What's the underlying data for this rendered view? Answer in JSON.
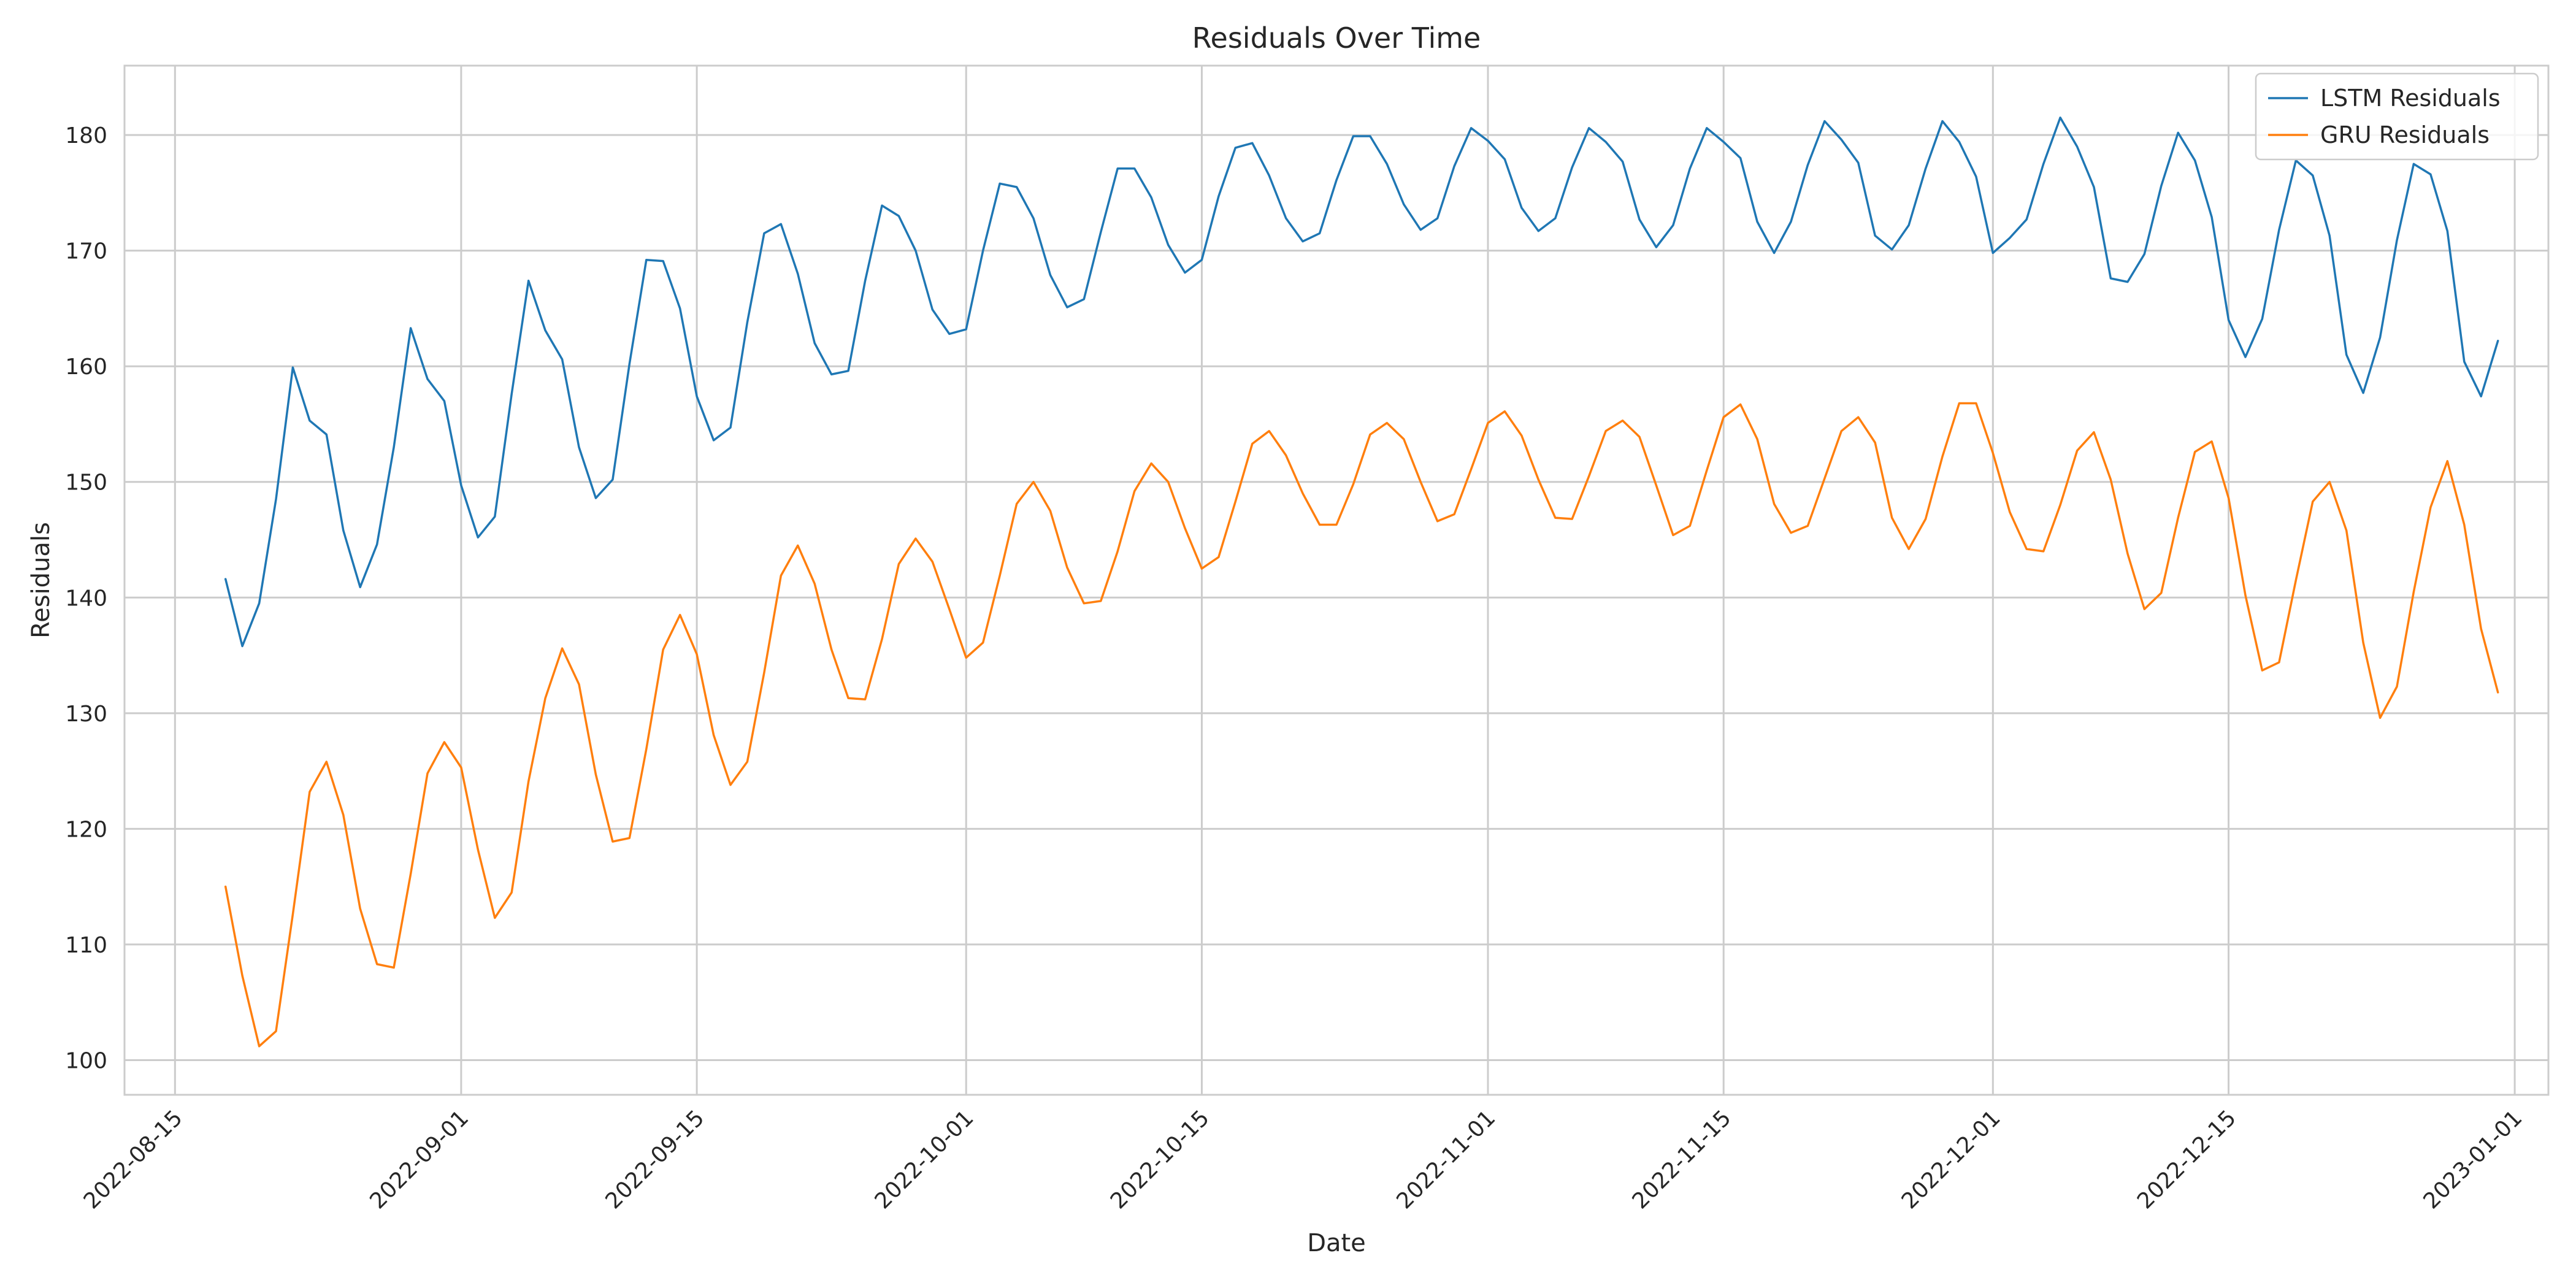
{
  "chart_data": {
    "type": "line",
    "title": "Residuals Over Time",
    "xlabel": "Date",
    "ylabel": "Residuals",
    "grid": true,
    "legend_position": "top-right",
    "x_start": "2022-08-18",
    "x_step_days": 1,
    "xlim": [
      "2022-08-12",
      "2023-01-03"
    ],
    "ylim": [
      97,
      186
    ],
    "xticks": [
      "2022-08-15",
      "2022-09-01",
      "2022-09-15",
      "2022-10-01",
      "2022-10-15",
      "2022-11-01",
      "2022-11-15",
      "2022-12-01",
      "2022-12-15",
      "2023-01-01"
    ],
    "yticks": [
      100,
      110,
      120,
      130,
      140,
      150,
      160,
      170,
      180
    ],
    "series": [
      {
        "name": "LSTM Residuals",
        "color": "#1f77b4",
        "values": [
          141.6,
          135.8,
          139.5,
          148.5,
          159.9,
          155.3,
          154.1,
          145.8,
          140.9,
          144.6,
          153.0,
          163.3,
          158.9,
          157.0,
          149.7,
          145.2,
          147.0,
          157.6,
          167.4,
          163.1,
          160.6,
          153.0,
          148.6,
          150.2,
          160.2,
          169.2,
          169.1,
          165.0,
          157.4,
          153.6,
          154.7,
          163.8,
          171.5,
          172.3,
          168.0,
          162.0,
          159.3,
          159.6,
          167.4,
          173.9,
          173.0,
          170.0,
          164.9,
          162.8,
          163.2,
          170.0,
          175.8,
          175.5,
          172.8,
          167.9,
          165.1,
          165.8,
          171.6,
          177.1,
          177.1,
          174.6,
          170.5,
          168.1,
          169.2,
          174.7,
          178.9,
          179.3,
          176.5,
          172.8,
          170.8,
          171.5,
          176.1,
          179.9,
          179.9,
          177.5,
          174.0,
          171.8,
          172.8,
          177.3,
          180.6,
          179.5,
          177.9,
          173.7,
          171.7,
          172.8,
          177.2,
          180.6,
          179.4,
          177.7,
          172.7,
          170.3,
          172.2,
          177.1,
          180.6,
          179.4,
          178.0,
          172.5,
          169.8,
          172.5,
          177.4,
          181.2,
          179.6,
          177.6,
          171.3,
          170.1,
          172.2,
          177.1,
          181.2,
          179.4,
          176.4,
          169.8,
          171.1,
          172.7,
          177.5,
          181.5,
          179.0,
          175.5,
          167.6,
          167.3,
          169.7,
          175.6,
          180.2,
          177.8,
          172.9,
          164.0,
          160.8,
          164.1,
          171.8,
          177.8,
          176.5,
          171.3,
          161.0,
          157.7,
          162.5,
          170.9,
          177.5,
          176.6,
          171.7,
          160.4,
          157.4,
          162.2
        ]
      },
      {
        "name": "GRU Residuals",
        "color": "#ff7f0e",
        "values": [
          115.0,
          107.3,
          101.2,
          102.5,
          112.6,
          123.2,
          125.8,
          121.2,
          113.1,
          108.3,
          108.0,
          116.1,
          124.8,
          127.5,
          125.3,
          118.2,
          112.3,
          114.5,
          124.1,
          131.3,
          135.6,
          132.5,
          124.7,
          118.9,
          119.2,
          126.9,
          135.5,
          138.5,
          135.1,
          128.1,
          123.8,
          125.8,
          133.5,
          141.9,
          144.5,
          141.2,
          135.5,
          131.3,
          131.2,
          136.4,
          142.9,
          145.1,
          143.1,
          139.0,
          134.8,
          136.1,
          141.9,
          148.1,
          150.0,
          147.5,
          142.6,
          139.5,
          139.7,
          144.0,
          149.2,
          151.6,
          150.0,
          146.0,
          142.5,
          143.5,
          148.3,
          153.3,
          154.4,
          152.3,
          149.0,
          146.3,
          146.3,
          149.8,
          154.1,
          155.1,
          153.7,
          150.0,
          146.6,
          147.2,
          151.1,
          155.1,
          156.1,
          154.0,
          150.2,
          146.9,
          146.8,
          150.5,
          154.4,
          155.3,
          153.9,
          149.7,
          145.4,
          146.2,
          151.0,
          155.6,
          156.7,
          153.7,
          148.1,
          145.6,
          146.2,
          150.3,
          154.4,
          155.6,
          153.4,
          146.9,
          144.2,
          146.8,
          152.2,
          156.8,
          156.8,
          152.5,
          147.4,
          144.2,
          144.0,
          148.0,
          152.7,
          154.3,
          150.2,
          143.8,
          139.0,
          140.4,
          146.9,
          152.6,
          153.5,
          148.6,
          140.2,
          133.7,
          134.4,
          141.5,
          148.3,
          150.0,
          145.8,
          136.1,
          129.6,
          132.3,
          140.5,
          147.8,
          151.8,
          146.3,
          137.3,
          131.8
        ]
      }
    ]
  }
}
